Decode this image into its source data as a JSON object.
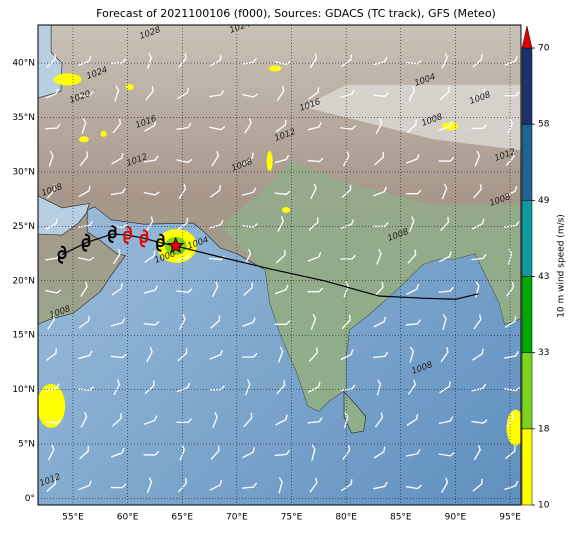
{
  "title": "Forecast of 2021100106 (f000), Sources: GDACS (TC track), GFS (Meteo)",
  "map": {
    "lonlim": [
      51.8,
      96
    ],
    "latlim": [
      -0.6,
      43.5
    ],
    "lon_ticks": [
      {
        "value": 55,
        "label": "55°E"
      },
      {
        "value": 60,
        "label": "60°E"
      },
      {
        "value": 65,
        "label": "65°E"
      },
      {
        "value": 70,
        "label": "70°E"
      },
      {
        "value": 75,
        "label": "75°E"
      },
      {
        "value": 80,
        "label": "80°E"
      },
      {
        "value": 85,
        "label": "85°E"
      },
      {
        "value": 90,
        "label": "90°E"
      },
      {
        "value": 95,
        "label": "95°E"
      }
    ],
    "lat_ticks": [
      {
        "value": 0,
        "label": "0°"
      },
      {
        "value": 5,
        "label": "5°N"
      },
      {
        "value": 10,
        "label": "10°N"
      },
      {
        "value": 15,
        "label": "15°N"
      },
      {
        "value": 20,
        "label": "20°N"
      },
      {
        "value": 25,
        "label": "25°N"
      },
      {
        "value": 30,
        "label": "30°N"
      },
      {
        "value": 35,
        "label": "35°N"
      },
      {
        "value": 40,
        "label": "40°N"
      }
    ],
    "isobar_labels": [
      1028,
      1024,
      1024,
      1020,
      1016,
      1016,
      1012,
      1012,
      1008,
      1008,
      1004,
      1008,
      1008,
      1012,
      1008,
      1008,
      1008,
      1008,
      1012,
      1000,
      1004
    ]
  },
  "track": {
    "lon": [
      54.0,
      56.2,
      58.6,
      60.0,
      61.5,
      63.0,
      64.4
    ],
    "lat": [
      22.4,
      23.5,
      24.3,
      24.2,
      23.9,
      23.5,
      23.2
    ],
    "colors": [
      "#000000",
      "#000000",
      "#000000",
      "#e00000",
      "#e00000",
      "#000000",
      "#e00000"
    ]
  },
  "past_track": {
    "lon": [
      64.4,
      68,
      73,
      78,
      83,
      87,
      90,
      92.1
    ],
    "lat": [
      23.2,
      22.3,
      21.1,
      20.0,
      18.6,
      18.4,
      18.3,
      18.8
    ]
  },
  "colorbar": {
    "label": "10 m wind speed (m/s)",
    "ticks": [
      10,
      18,
      33,
      43,
      49,
      58,
      70
    ],
    "colors": [
      "#ffff00",
      "#7fd21e",
      "#00a800",
      "#0f9aa0",
      "#1f6594",
      "#1e3168"
    ],
    "extend_color": "#dd0000"
  }
}
